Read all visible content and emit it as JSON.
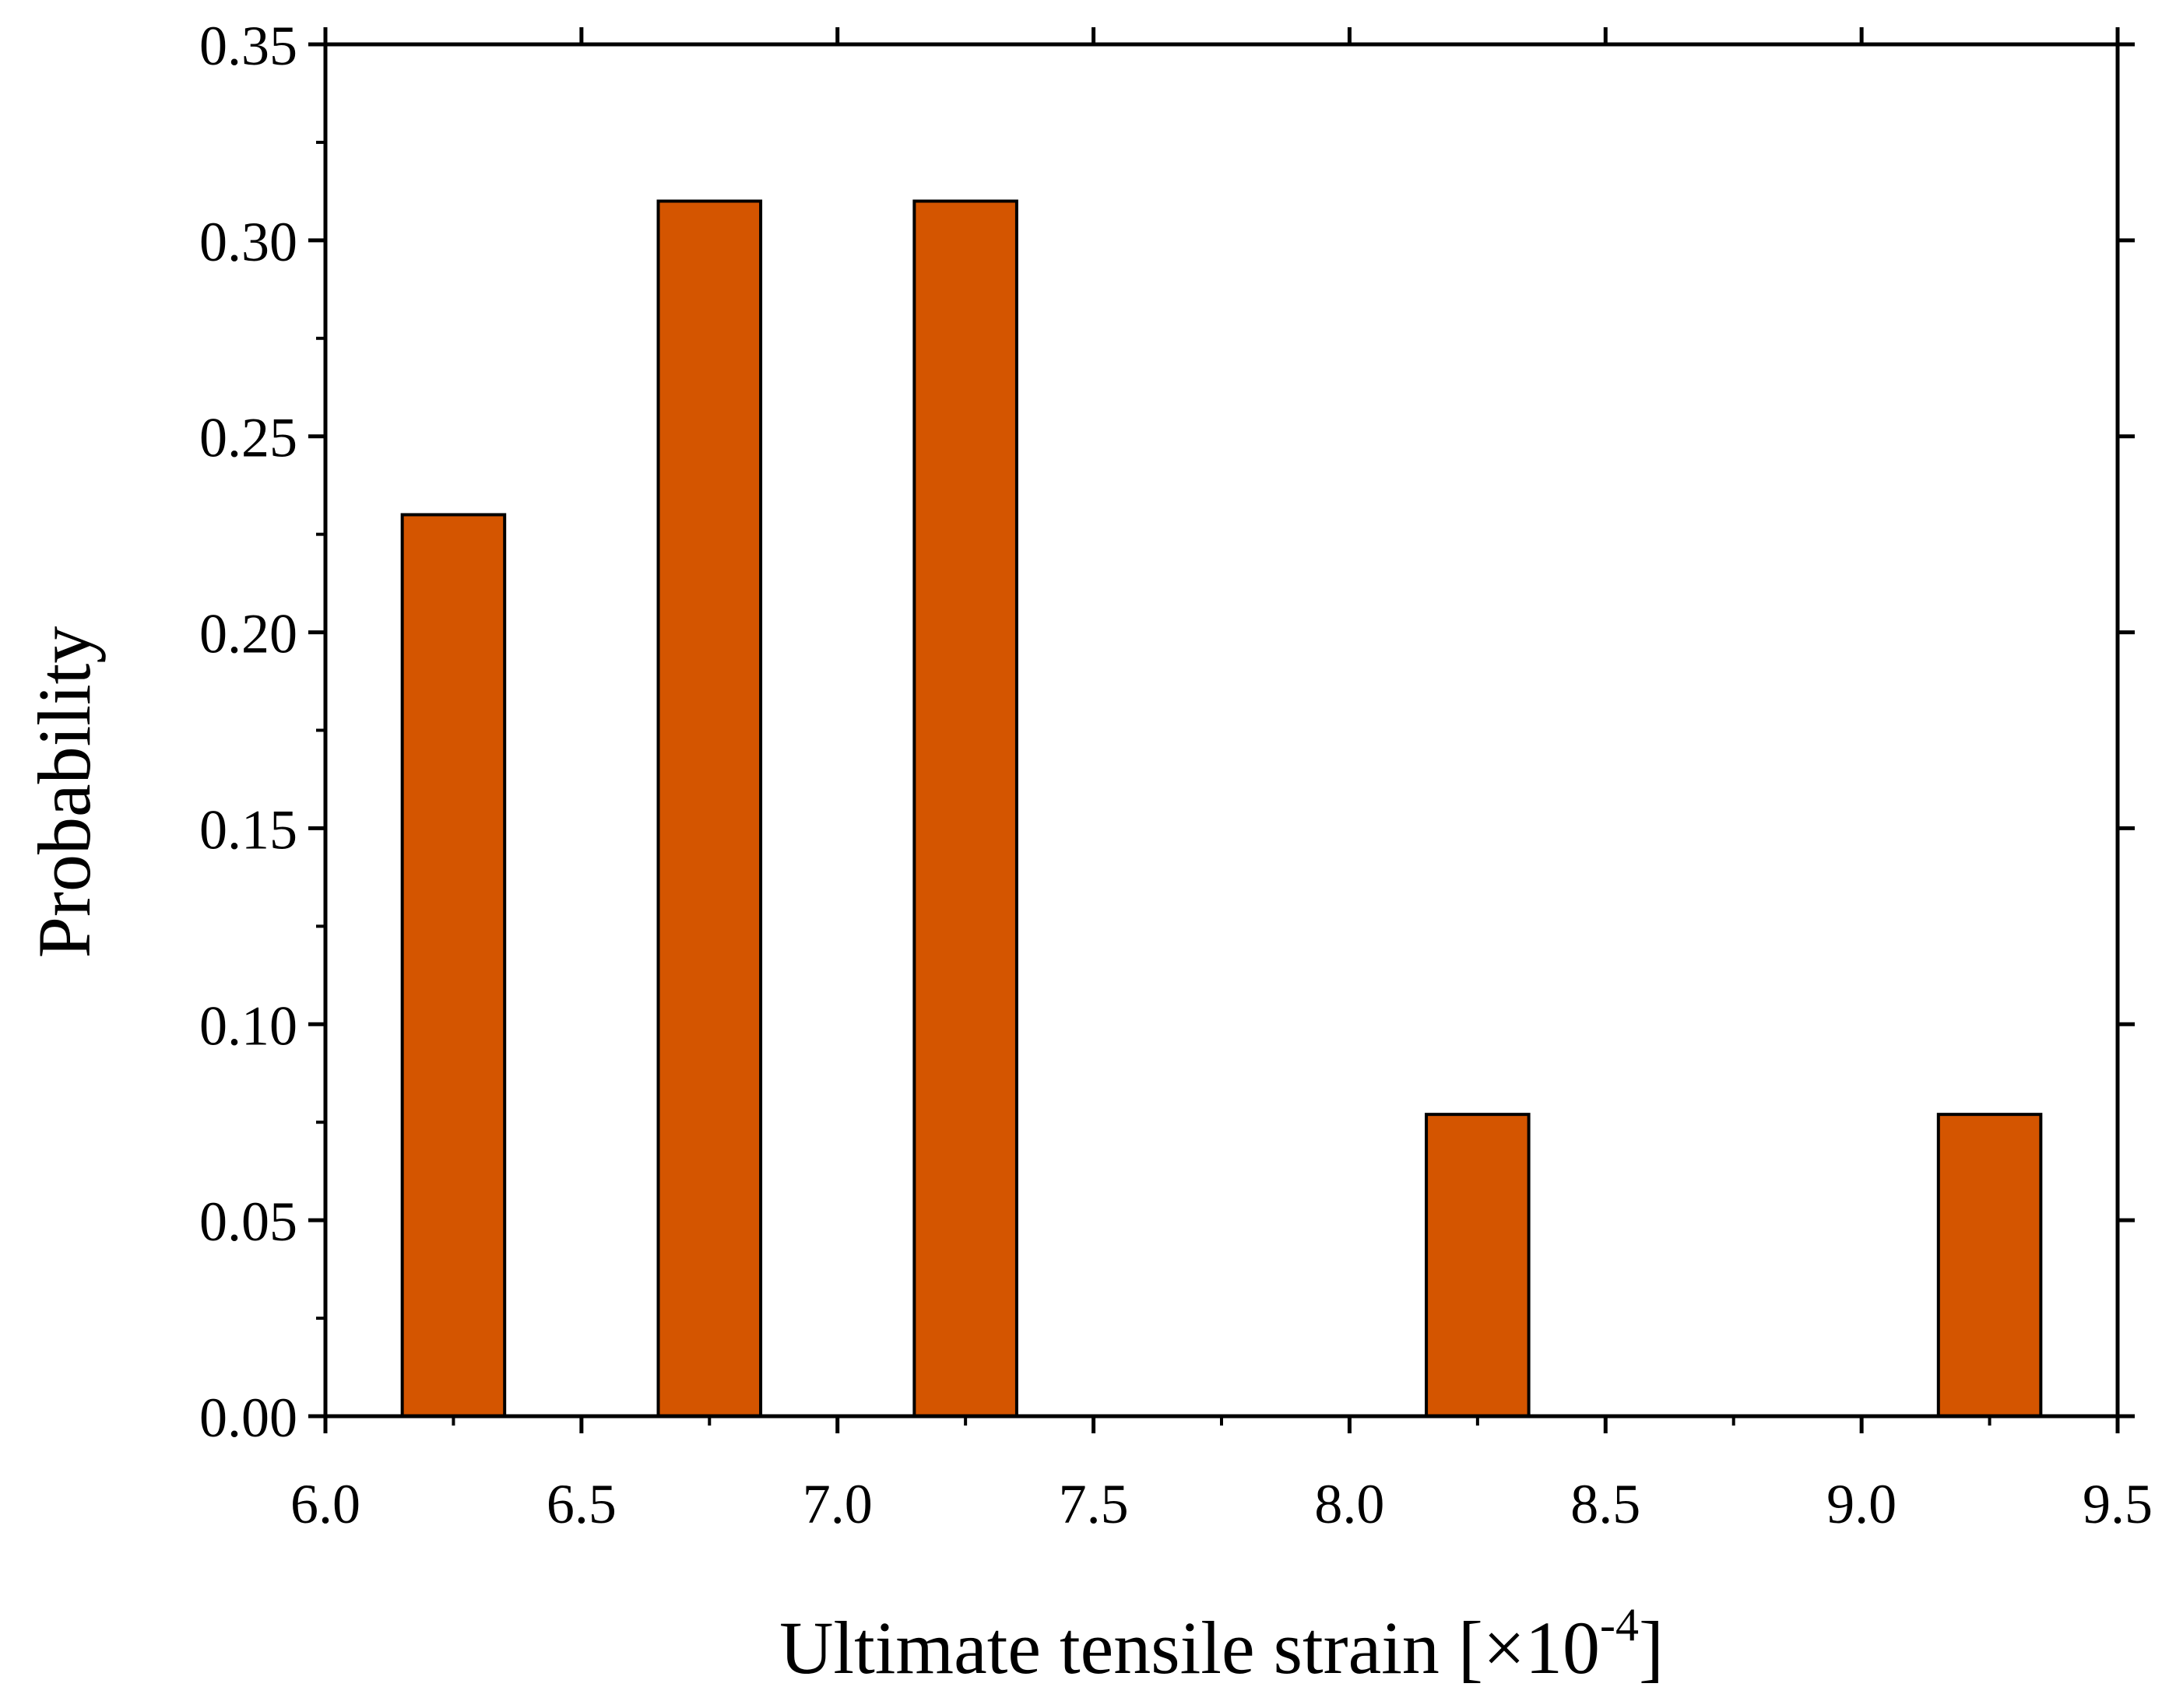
{
  "chart_data": {
    "type": "bar",
    "title": "",
    "xlabel": {
      "main": "Ultimate tensile strain [×10",
      "exponent": "-4",
      "close": "]"
    },
    "ylabel": "Probability",
    "xlim": [
      6.0,
      9.5
    ],
    "ylim": [
      0.0,
      0.35
    ],
    "x_ticks": [
      "6.0",
      "6.5",
      "7.0",
      "7.5",
      "8.0",
      "8.5",
      "9.0",
      "9.5"
    ],
    "y_ticks": [
      "0.00",
      "0.05",
      "0.10",
      "0.15",
      "0.20",
      "0.25",
      "0.30",
      "0.35"
    ],
    "bin_width": 0.2,
    "bars": [
      {
        "x": 6.25,
        "value": 0.23
      },
      {
        "x": 6.75,
        "value": 0.31
      },
      {
        "x": 7.25,
        "value": 0.31
      },
      {
        "x": 8.25,
        "value": 0.077
      },
      {
        "x": 9.25,
        "value": 0.077
      }
    ],
    "bar_color": "#D45500",
    "bar_edge_color": "#000000",
    "grid": false,
    "legend": "none"
  }
}
